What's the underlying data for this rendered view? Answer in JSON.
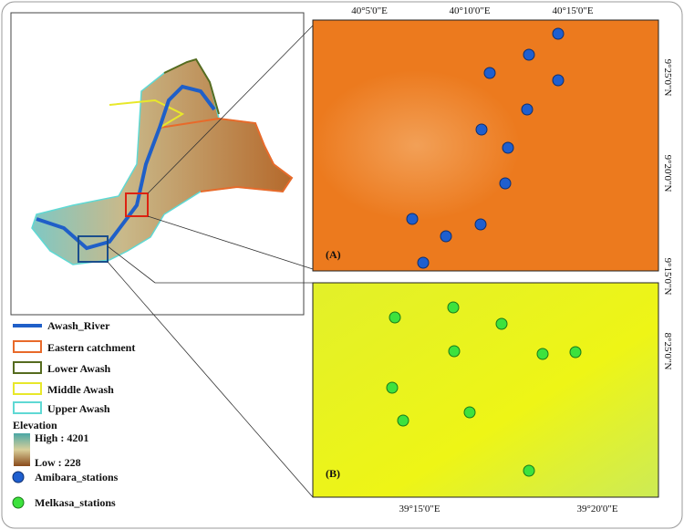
{
  "map": {
    "top_axis": [
      "40°5'0\"E",
      "40°10'0\"E",
      "40°15'0\"E"
    ],
    "right_axis_a": [
      "9°25'0\"N",
      "9°20'0\"N",
      "9°15'0\"N"
    ],
    "right_axis_b": [
      "8°25'0\"N"
    ],
    "bottom_axis": [
      "39°15'0\"E",
      "39°20'0\"E"
    ],
    "panel_a": "(A)",
    "panel_b": "(B)"
  },
  "legend": {
    "items": [
      "Awash_River",
      "Eastern catchment",
      "Lower Awash",
      "Middle Awash",
      "Upper Awash"
    ],
    "elevation_title": "Elevation",
    "high": "High : 4201",
    "low": "Low : 228",
    "amibara": "Amibara_stations",
    "melkasa": "Melkasa_stations"
  }
}
